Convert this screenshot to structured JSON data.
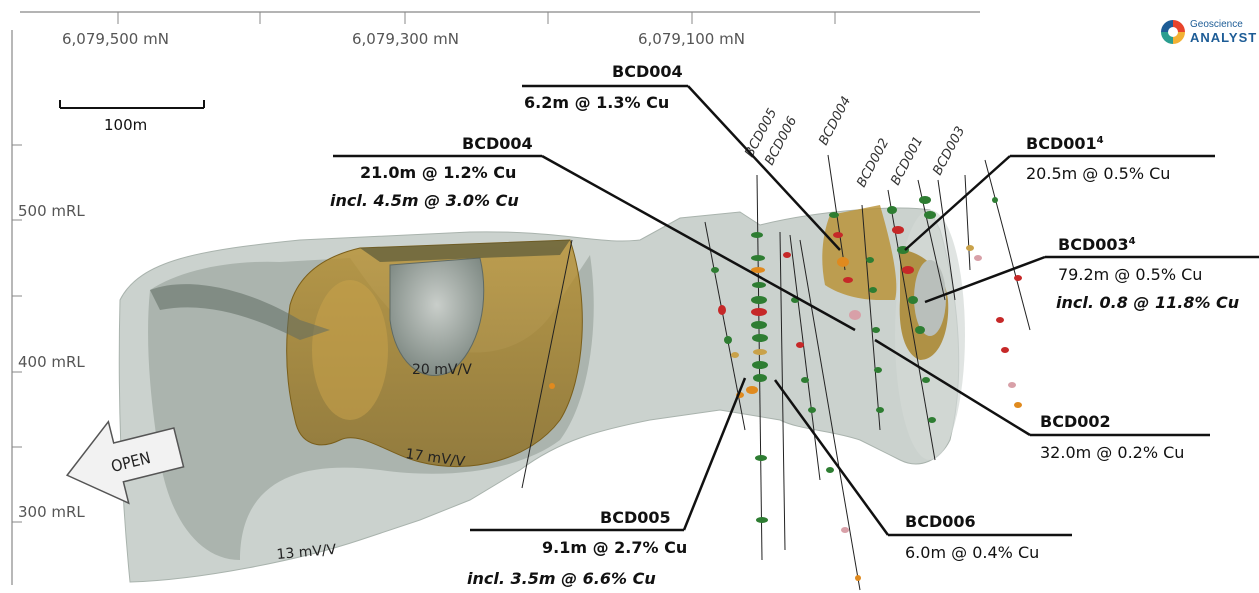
{
  "northing_labels": [
    "6,079,500 mN",
    "6,079,300 mN",
    "6,079,100 mN"
  ],
  "rl_labels": [
    "500 mRL",
    "400 mRL",
    "300 mRL"
  ],
  "scale_bar": "100m",
  "logo": {
    "line1": "Geoscience",
    "line2": "ANALYST"
  },
  "open_arrow": "OPEN",
  "contours": [
    "20 mV/V",
    "17 mV/V",
    "13 mV/V"
  ],
  "holes": [
    "BCD005",
    "BCD006",
    "BCD004",
    "BCD002",
    "BCD001",
    "BCD003"
  ],
  "callouts": {
    "bcd004_top": {
      "hole": "BCD004",
      "line1": "6.2m @ 1.3% Cu"
    },
    "bcd004_left": {
      "hole": "BCD004",
      "line1": "21.0m @ 1.2% Cu",
      "line2": "incl. 4.5m @ 3.0% Cu"
    },
    "bcd001": {
      "hole": "BCD001",
      "sup": "4",
      "line1": "20.5m @ 0.5% Cu"
    },
    "bcd003": {
      "hole": "BCD003",
      "sup": "4",
      "line1": "79.2m @ 0.5% Cu",
      "line2": "incl. 0.8 @ 11.8% Cu"
    },
    "bcd002": {
      "hole": "BCD002",
      "line1": "32.0m @ 0.2% Cu"
    },
    "bcd005": {
      "hole": "BCD005",
      "line1": "9.1m @ 2.7% Cu",
      "line2": "incl. 3.5m @ 6.6% Cu"
    },
    "bcd006": {
      "hole": "BCD006",
      "line1": "6.0m @ 0.4% Cu"
    }
  },
  "colors": {
    "outer_shell": "#b9c3bd",
    "mid_shell": "#7f8c84",
    "gold_shell": "#a8852c",
    "core_shell": "#9aa39d",
    "assay_green": "#2e7d32",
    "assay_red": "#c62828",
    "assay_orange": "#e08a1e",
    "assay_pink": "#d8a0a8"
  }
}
